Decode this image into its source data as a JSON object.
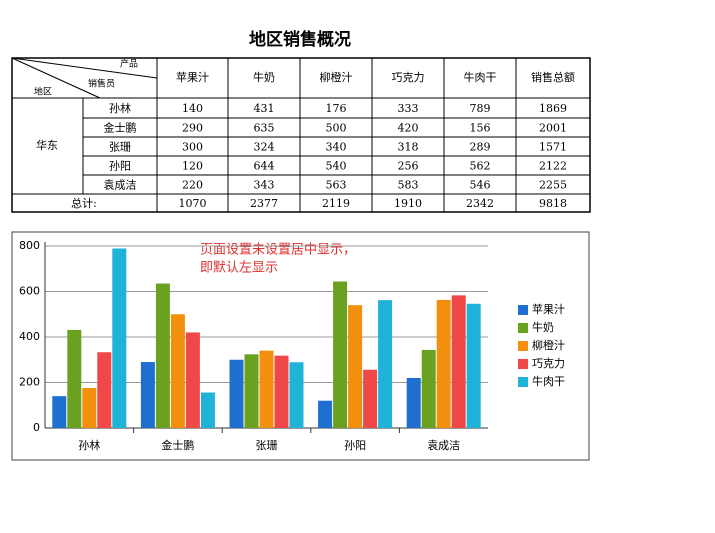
{
  "title": "地区销售概况",
  "table": {
    "corner": {
      "product": "产品",
      "salesperson": "销售员",
      "region": "地区"
    },
    "columns": [
      "苹果汁",
      "牛奶",
      "柳橙汁",
      "巧克力",
      "牛肉干",
      "销售总额"
    ],
    "region": "华东",
    "rows": [
      [
        "孙林",
        "140",
        "431",
        "176",
        "333",
        "789",
        "1869"
      ],
      [
        "金士鹏",
        "290",
        "635",
        "500",
        "420",
        "156",
        "2001"
      ],
      [
        "张珊",
        "300",
        "324",
        "340",
        "318",
        "289",
        "1571"
      ],
      [
        "孙阳",
        "120",
        "644",
        "540",
        "256",
        "562",
        "2122"
      ],
      [
        "袁成洁",
        "220",
        "343",
        "563",
        "583",
        "546",
        "2255"
      ]
    ],
    "total": [
      "总计:",
      "1070",
      "2377",
      "2119",
      "1910",
      "2342",
      "9818"
    ]
  },
  "chart_data": {
    "type": "bar",
    "categories": [
      "孙林",
      "金士鹏",
      "张珊",
      "孙阳",
      "袁成洁"
    ],
    "series": [
      {
        "name": "苹果汁",
        "color": "#1f6fd1",
        "values": [
          140,
          290,
          300,
          120,
          220
        ]
      },
      {
        "name": "牛奶",
        "color": "#6aa121",
        "values": [
          431,
          635,
          324,
          644,
          343
        ]
      },
      {
        "name": "柳橙汁",
        "color": "#f28f0c",
        "values": [
          176,
          500,
          340,
          540,
          563
        ]
      },
      {
        "name": "巧克力",
        "color": "#f04848",
        "values": [
          333,
          420,
          318,
          256,
          583
        ]
      },
      {
        "name": "牛肉干",
        "color": "#1fb3d8",
        "values": [
          789,
          156,
          289,
          562,
          546
        ]
      }
    ],
    "ylim": [
      0,
      800
    ],
    "yticks": [
      0,
      200,
      400,
      600,
      800
    ],
    "grid": true,
    "legend": "right"
  },
  "annotation": [
    "页面设置未设置居中显示，",
    "即默认左显示"
  ]
}
